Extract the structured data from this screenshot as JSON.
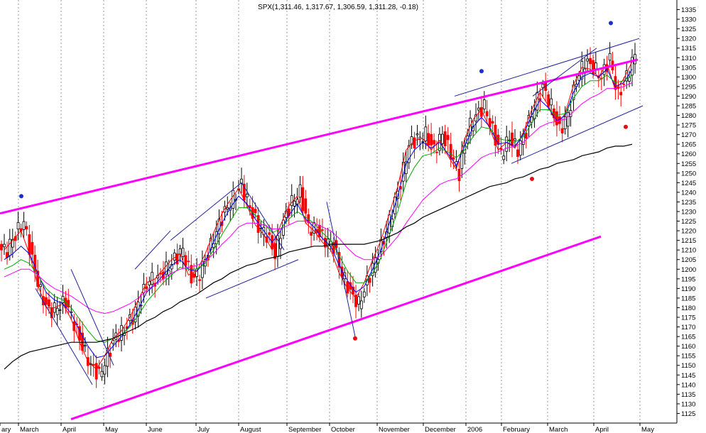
{
  "chart_data": {
    "type": "candlestick",
    "title": "SPX(1,311.46, 1,317.67, 1,306.59, 1,311.28, -0.18)",
    "symbol": "SPX",
    "last": {
      "open": 1311.46,
      "high": 1317.67,
      "low": 1306.59,
      "close": 1311.28,
      "change": -0.18
    },
    "ylim": [
      1120,
      1340
    ],
    "y_ticks": [
      1125,
      1130,
      1135,
      1140,
      1145,
      1150,
      1155,
      1160,
      1165,
      1170,
      1175,
      1180,
      1185,
      1190,
      1195,
      1200,
      1205,
      1210,
      1215,
      1220,
      1225,
      1230,
      1235,
      1240,
      1245,
      1250,
      1255,
      1260,
      1265,
      1270,
      1275,
      1280,
      1285,
      1290,
      1295,
      1300,
      1305,
      1310,
      1315,
      1320,
      1325,
      1330,
      1335
    ],
    "x_labels": [
      "ary",
      "March",
      "April",
      "May",
      "June",
      "July",
      "August",
      "September",
      "October",
      "November",
      "December",
      "2006",
      "February",
      "March",
      "April",
      "May"
    ],
    "grid": true,
    "up_color": "#000000",
    "down_color": "#ff0000",
    "ma_colors": {
      "fast": "#ff0000",
      "medium": "#0000ff",
      "slow": "#00aa00",
      "long": "#ff00ff",
      "longest": "#000000"
    },
    "trendline_color": "#ff00ff",
    "closes_weekly": [
      1210,
      1218,
      1225,
      1205,
      1188,
      1178,
      1180,
      1183,
      1172,
      1160,
      1150,
      1145,
      1155,
      1165,
      1168,
      1175,
      1185,
      1195,
      1195,
      1200,
      1205,
      1210,
      1195,
      1198,
      1208,
      1220,
      1230,
      1237,
      1244,
      1232,
      1222,
      1218,
      1208,
      1225,
      1235,
      1240,
      1222,
      1220,
      1215,
      1212,
      1198,
      1188,
      1182,
      1193,
      1205,
      1215,
      1230,
      1245,
      1265,
      1268,
      1270,
      1262,
      1270,
      1260,
      1250,
      1272,
      1280,
      1285,
      1272,
      1260,
      1268,
      1262,
      1272,
      1285,
      1295,
      1285,
      1272,
      1280,
      1298,
      1308,
      1305,
      1300,
      1310,
      1290,
      1300,
      1311.28
    ],
    "moving_averages": {
      "fast": [
        1210,
        1215,
        1220,
        1208,
        1192,
        1180,
        1180,
        1182,
        1174,
        1162,
        1152,
        1148,
        1155,
        1164,
        1168,
        1175,
        1184,
        1193,
        1195,
        1200,
        1205,
        1208,
        1197,
        1199,
        1208,
        1219,
        1229,
        1236,
        1242,
        1233,
        1223,
        1218,
        1210,
        1223,
        1233,
        1238,
        1224,
        1220,
        1214,
        1210,
        1198,
        1190,
        1185,
        1193,
        1205,
        1215,
        1229,
        1243,
        1262,
        1267,
        1268,
        1262,
        1267,
        1259,
        1252,
        1268,
        1278,
        1283,
        1273,
        1262,
        1266,
        1263,
        1271,
        1283,
        1292,
        1285,
        1275,
        1281,
        1296,
        1305,
        1304,
        1300,
        1307,
        1293,
        1299,
        1308
      ],
      "medium": [
        1205,
        1208,
        1212,
        1208,
        1198,
        1188,
        1184,
        1182,
        1177,
        1168,
        1160,
        1154,
        1155,
        1160,
        1165,
        1171,
        1179,
        1188,
        1192,
        1197,
        1202,
        1205,
        1200,
        1199,
        1204,
        1214,
        1224,
        1232,
        1238,
        1234,
        1226,
        1220,
        1214,
        1220,
        1228,
        1234,
        1226,
        1222,
        1216,
        1212,
        1202,
        1194,
        1188,
        1191,
        1200,
        1210,
        1224,
        1238,
        1255,
        1262,
        1266,
        1263,
        1266,
        1260,
        1254,
        1264,
        1274,
        1279,
        1274,
        1265,
        1266,
        1264,
        1270,
        1280,
        1288,
        1284,
        1277,
        1280,
        1292,
        1300,
        1302,
        1300,
        1304,
        1295,
        1297,
        1304
      ],
      "slow": [
        1200,
        1202,
        1205,
        1203,
        1197,
        1190,
        1186,
        1184,
        1180,
        1174,
        1168,
        1163,
        1162,
        1164,
        1166,
        1170,
        1176,
        1183,
        1188,
        1193,
        1197,
        1201,
        1200,
        1200,
        1203,
        1210,
        1218,
        1225,
        1232,
        1232,
        1228,
        1224,
        1219,
        1221,
        1226,
        1230,
        1227,
        1224,
        1219,
        1215,
        1207,
        1199,
        1193,
        1193,
        1198,
        1206,
        1218,
        1230,
        1245,
        1253,
        1259,
        1260,
        1263,
        1261,
        1258,
        1262,
        1269,
        1274,
        1273,
        1268,
        1267,
        1266,
        1269,
        1276,
        1283,
        1283,
        1280,
        1281,
        1289,
        1295,
        1298,
        1298,
        1301,
        1297,
        1298,
        1301
      ],
      "long": [
        1196,
        1198,
        1200,
        1200,
        1197,
        1193,
        1190,
        1188,
        1186,
        1183,
        1180,
        1178,
        1177,
        1178,
        1180,
        1182,
        1185,
        1189,
        1192,
        1195,
        1198,
        1200,
        1201,
        1202,
        1204,
        1208,
        1213,
        1217,
        1222,
        1224,
        1224,
        1223,
        1221,
        1221,
        1223,
        1225,
        1225,
        1224,
        1222,
        1220,
        1216,
        1211,
        1207,
        1205,
        1205,
        1207,
        1212,
        1217,
        1224,
        1230,
        1236,
        1240,
        1244,
        1246,
        1247,
        1250,
        1254,
        1258,
        1260,
        1261,
        1263,
        1264,
        1266,
        1270,
        1274,
        1276,
        1277,
        1278,
        1282,
        1286,
        1289,
        1291,
        1294,
        1294,
        1295,
        1297
      ],
      "longest": [
        1148,
        1152,
        1155,
        1157,
        1158,
        1159,
        1160,
        1161,
        1162,
        1162,
        1162,
        1162,
        1163,
        1164,
        1166,
        1168,
        1170,
        1173,
        1175,
        1178,
        1180,
        1183,
        1185,
        1187,
        1190,
        1193,
        1195,
        1198,
        1200,
        1202,
        1203,
        1205,
        1206,
        1207,
        1209,
        1210,
        1211,
        1212,
        1212,
        1213,
        1213,
        1213,
        1213,
        1213,
        1214,
        1215,
        1217,
        1219,
        1222,
        1224,
        1227,
        1229,
        1231,
        1233,
        1235,
        1237,
        1239,
        1241,
        1243,
        1244,
        1245,
        1247,
        1248,
        1250,
        1252,
        1253,
        1255,
        1256,
        1257,
        1259,
        1260,
        1261,
        1263,
        1264,
        1264,
        1265
      ]
    },
    "markers": [
      {
        "type": "blue-dot",
        "y": 1238
      },
      {
        "type": "red-dot",
        "y": 1164
      },
      {
        "type": "blue-dot",
        "y": 1303
      },
      {
        "type": "red-dot",
        "y": 1247
      },
      {
        "type": "blue-dot",
        "y": 1328
      },
      {
        "type": "red-dot",
        "y": 1274
      }
    ],
    "channel_lines": [
      {
        "name": "upper-channel",
        "from": 1229,
        "to": 1309
      },
      {
        "name": "lower-channel",
        "from": 1122,
        "to": 1217
      }
    ]
  }
}
